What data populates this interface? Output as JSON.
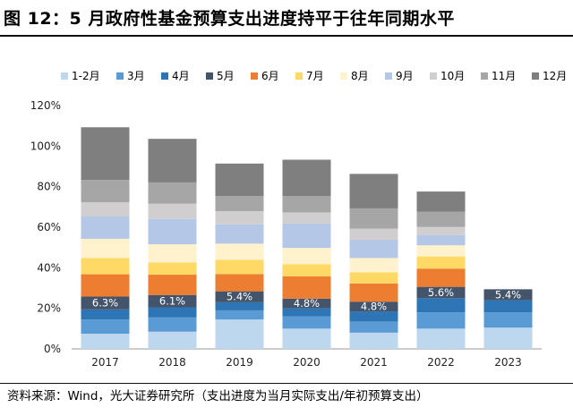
{
  "header": {
    "title": "图 12：5 月政府性基金预算支出进度持平于往年同期水平"
  },
  "footer": {
    "source": "资料来源：Wind，光大证券研究所（支出进度为当月实际支出/年初预算支出）"
  },
  "chart_data": {
    "type": "bar",
    "stacked": true,
    "categories": [
      "2017",
      "2018",
      "2019",
      "2020",
      "2021",
      "2022",
      "2023"
    ],
    "ylim": [
      0,
      120
    ],
    "yticks": [
      0,
      20,
      40,
      60,
      80,
      100,
      120
    ],
    "ytick_labels": [
      "0%",
      "20%",
      "40%",
      "60%",
      "80%",
      "100%",
      "120%"
    ],
    "grid": false,
    "legend_position": "top",
    "series": [
      {
        "name": "1-2月",
        "color": "#bdd7ee",
        "values": [
          7.5,
          8.5,
          14.5,
          10,
          8,
          10,
          10.5
        ]
      },
      {
        "name": "3月",
        "color": "#5b9bd5",
        "values": [
          7,
          7,
          4.5,
          6,
          5.5,
          8,
          7.5
        ]
      },
      {
        "name": "4月",
        "color": "#2e75b6",
        "values": [
          5,
          5,
          4,
          4,
          5,
          7,
          6
        ]
      },
      {
        "name": "5月",
        "color": "#44546a",
        "values": [
          6.3,
          6.1,
          5.4,
          4.8,
          4.8,
          5.6,
          5.4
        ]
      },
      {
        "name": "6月",
        "color": "#ed7d31",
        "values": [
          11,
          10,
          8.5,
          11,
          9,
          9,
          null
        ]
      },
      {
        "name": "7月",
        "color": "#ffd966",
        "values": [
          8,
          6,
          7,
          6,
          5.5,
          6,
          null
        ]
      },
      {
        "name": "8月",
        "color": "#fff2cc",
        "values": [
          9.5,
          9,
          8,
          8,
          7,
          5.5,
          null
        ]
      },
      {
        "name": "9月",
        "color": "#b4c7e7",
        "values": [
          11,
          12.5,
          9.5,
          12,
          9,
          5,
          null
        ]
      },
      {
        "name": "10月",
        "color": "#d0cece",
        "values": [
          7,
          7.5,
          6.5,
          5.5,
          5.5,
          4,
          null
        ]
      },
      {
        "name": "11月",
        "color": "#a6a6a6",
        "values": [
          11,
          10.5,
          7.5,
          8,
          10,
          7.5,
          null
        ]
      },
      {
        "name": "12月",
        "color": "#7f7f7f",
        "values": [
          26,
          21.5,
          16,
          18,
          17,
          10,
          null
        ]
      }
    ],
    "data_labels": {
      "series": "5月",
      "labels": [
        "6.3%",
        "6.1%",
        "5.4%",
        "4.8%",
        "4.8%",
        "5.6%",
        "5.4%"
      ]
    }
  }
}
